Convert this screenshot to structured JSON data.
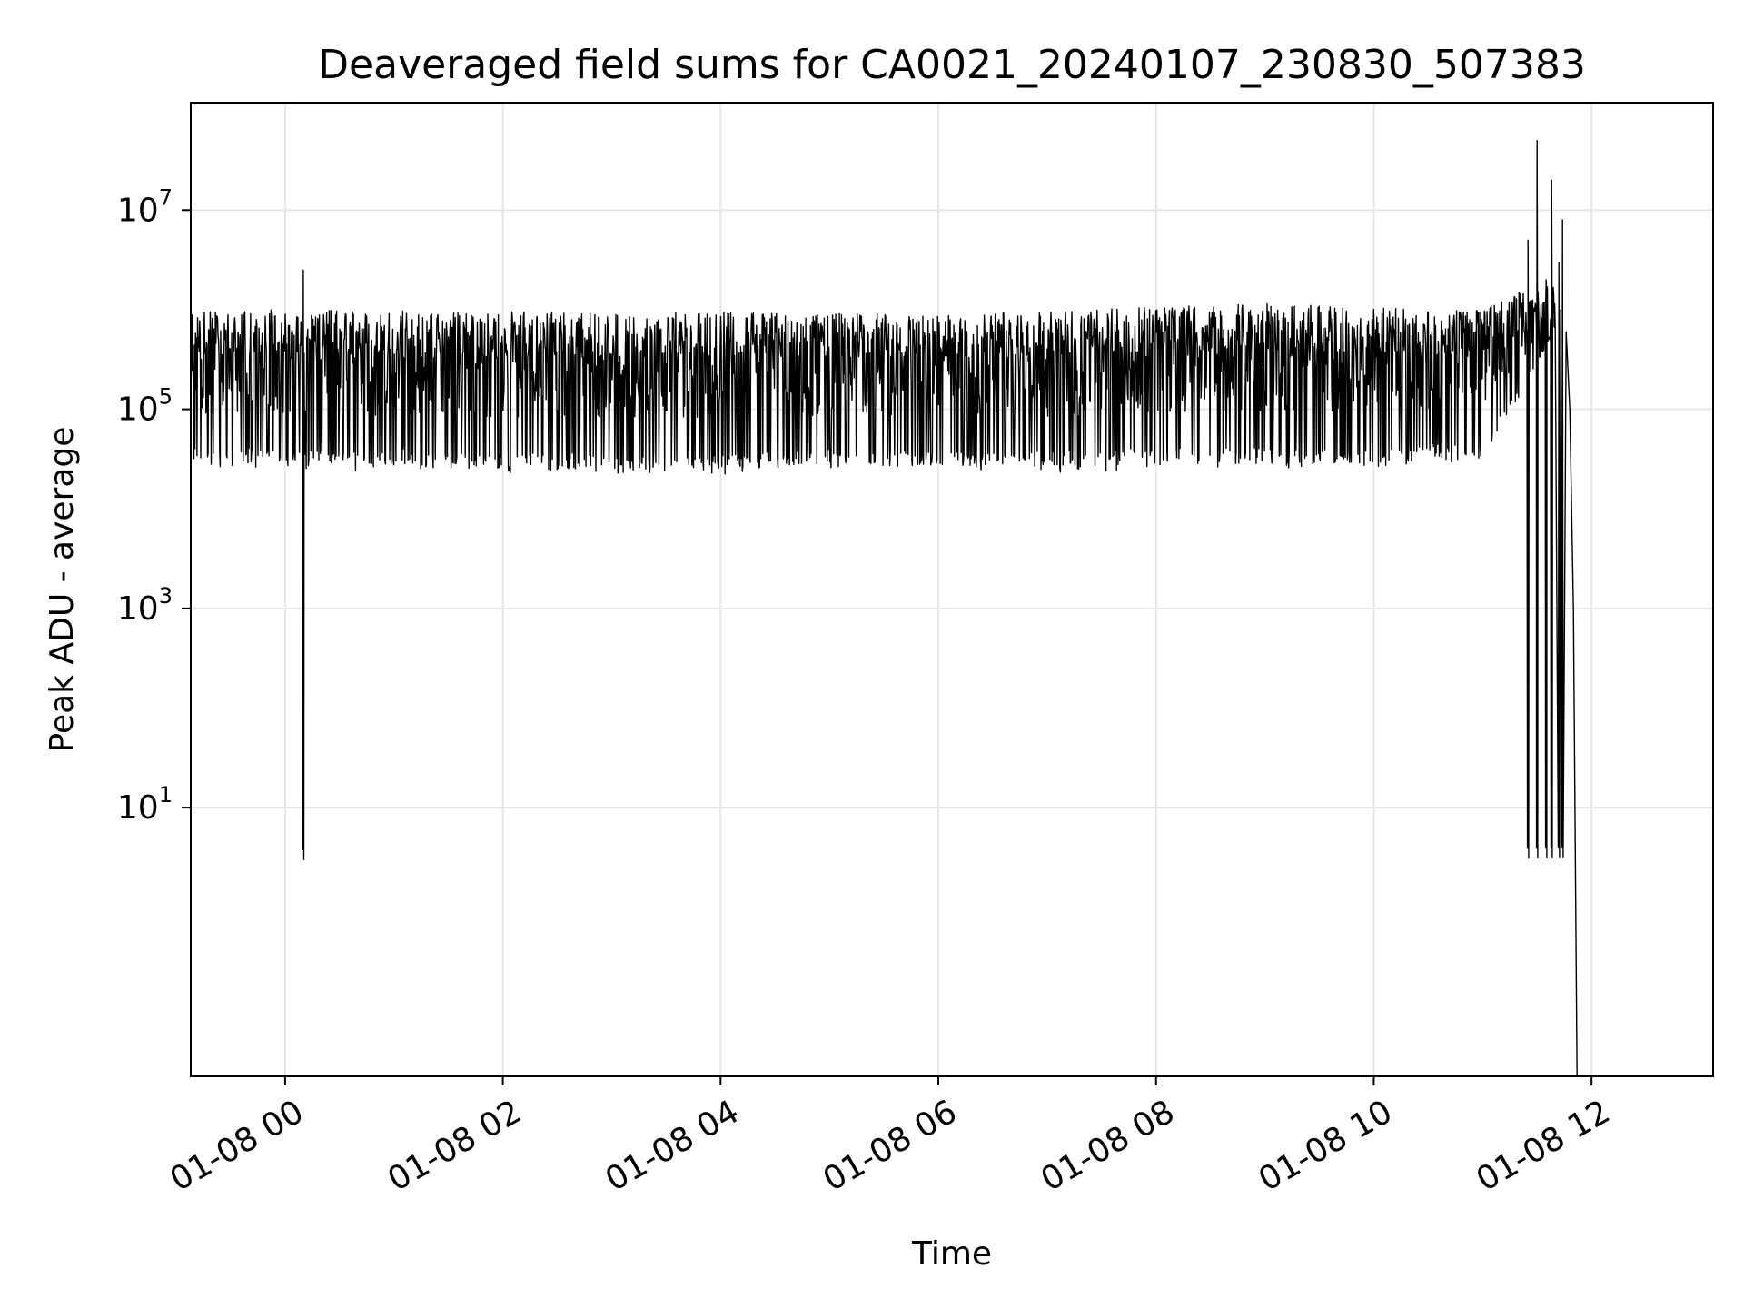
{
  "chart_data": {
    "type": "line",
    "title": "Deaveraged field sums for CA0021_20240107_230830_507383",
    "xlabel": "Time",
    "ylabel": "Peak ADU - average",
    "xscale": "time",
    "yscale": "log",
    "xlim": [
      "2024-01-07 23:08",
      "2024-01-08 13:07"
    ],
    "ylim": [
      0.02,
      120000000.0
    ],
    "grid": true,
    "line_color": "#000000",
    "x_ticks": [
      {
        "value": "2024-01-08 00:00",
        "label": "01-08 00"
      },
      {
        "value": "2024-01-08 02:00",
        "label": "01-08 02"
      },
      {
        "value": "2024-01-08 04:00",
        "label": "01-08 04"
      },
      {
        "value": "2024-01-08 06:00",
        "label": "01-08 06"
      },
      {
        "value": "2024-01-08 08:00",
        "label": "01-08 08"
      },
      {
        "value": "2024-01-08 10:00",
        "label": "01-08 10"
      },
      {
        "value": "2024-01-08 12:00",
        "label": "01-08 12"
      }
    ],
    "y_ticks": [
      {
        "value": 10,
        "base": "10",
        "exp": "1"
      },
      {
        "value": 1000,
        "base": "10",
        "exp": "3"
      },
      {
        "value": 100000,
        "base": "10",
        "exp": "5"
      },
      {
        "value": 10000000,
        "base": "10",
        "exp": "7"
      }
    ],
    "series": [
      {
        "envelope": [
          {
            "x": "2024-01-07 23:08",
            "low": 25000,
            "high": 1000000
          },
          {
            "x": "2024-01-08 00:00",
            "low": 25000,
            "high": 1000000
          },
          {
            "x": "2024-01-08 02:00",
            "low": 22000,
            "high": 950000
          },
          {
            "x": "2024-01-08 04:00",
            "low": 22000,
            "high": 950000
          },
          {
            "x": "2024-01-08 06:00",
            "low": 25000,
            "high": 900000
          },
          {
            "x": "2024-01-08 07:00",
            "low": 22000,
            "high": 950000
          },
          {
            "x": "2024-01-08 08:00",
            "low": 25000,
            "high": 1100000
          },
          {
            "x": "2024-01-08 09:00",
            "low": 25000,
            "high": 1150000
          },
          {
            "x": "2024-01-08 10:00",
            "low": 25000,
            "high": 1050000
          },
          {
            "x": "2024-01-08 11:00",
            "low": 30000,
            "high": 1000000
          },
          {
            "x": "2024-01-08 11:20",
            "low": 120000,
            "high": 1500000
          },
          {
            "x": "2024-01-08 11:40",
            "low": 600000,
            "high": 1800000
          }
        ],
        "spikes": [
          {
            "x": "2024-01-08 00:10",
            "y": 2500000
          },
          {
            "x": "2024-01-08 11:25",
            "y": 5000000
          },
          {
            "x": "2024-01-08 11:30",
            "y": 50000000
          },
          {
            "x": "2024-01-08 11:35",
            "y": 2000000
          },
          {
            "x": "2024-01-08 11:38",
            "y": 20000000
          },
          {
            "x": "2024-01-08 11:42",
            "y": 3000000
          },
          {
            "x": "2024-01-08 11:44",
            "y": 8000000
          }
        ],
        "tail": [
          {
            "x": "2024-01-08 11:43",
            "y": 1000000
          },
          {
            "x": "2024-01-08 11:46",
            "y": 600000
          },
          {
            "x": "2024-01-08 11:48",
            "y": 100000
          },
          {
            "x": "2024-01-08 11:50",
            "y": 1000
          },
          {
            "x": "2024-01-08 11:52",
            "y": 0.02
          }
        ]
      }
    ]
  }
}
